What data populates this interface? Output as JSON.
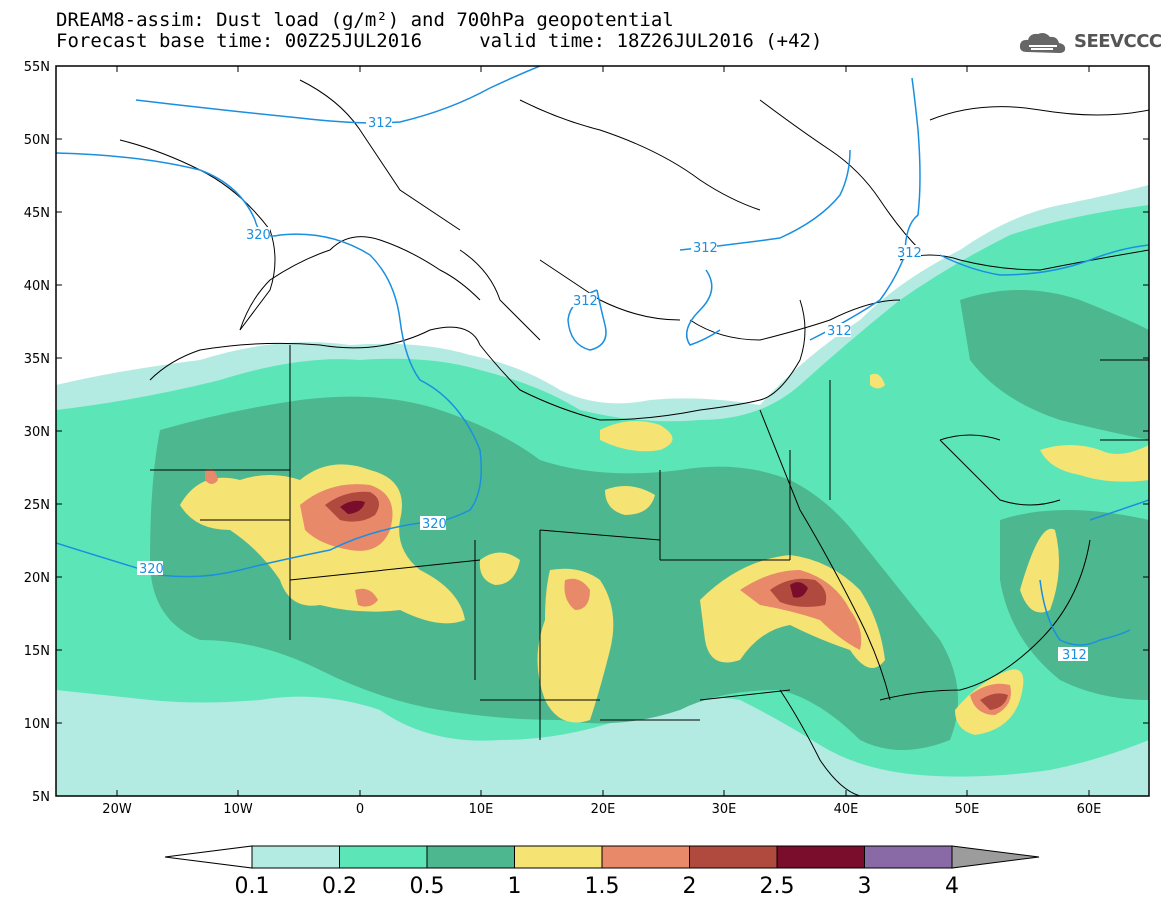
{
  "header": {
    "title_line1": "DREAM8-assim: Dust load (g/m²) and 700hPa geopotential",
    "title_line2": "Forecast base time: 00Z25JUL2016     valid time: 18Z26JUL2016 (+42)",
    "logo_text": "SEEVCCC"
  },
  "axes": {
    "lat_labels": [
      "55N",
      "50N",
      "45N",
      "40N",
      "35N",
      "30N",
      "25N",
      "20N",
      "15N",
      "10N",
      "5N"
    ],
    "lon_labels": [
      "20W",
      "10W",
      "0",
      "10E",
      "20E",
      "30E",
      "40E",
      "50E",
      "60E"
    ]
  },
  "contour_labels": [
    "312",
    "320",
    "312",
    "312",
    "312",
    "312",
    "320",
    "320",
    "312"
  ],
  "colorbar": {
    "levels": [
      "0.1",
      "0.2",
      "0.5",
      "1",
      "1.5",
      "2",
      "2.5",
      "3",
      "4"
    ],
    "colors": [
      "#b3ebe2",
      "#5ce6b8",
      "#4db88f",
      "#f5e373",
      "#e8896a",
      "#b04a3e",
      "#7a0c2c",
      "#8a6aa6",
      "#9c9c9c"
    ]
  },
  "colors": {
    "ocean": "#ffffff",
    "dust_low": "#b3ebe2",
    "dust_mid": "#5ce6b8",
    "dust_high": "#4db88f",
    "dust_yellow": "#f5e373",
    "dust_orange": "#e8896a",
    "dust_red": "#b04a3e",
    "dust_maroon": "#7a0c2c",
    "geopotential": "#1a8fe0"
  }
}
